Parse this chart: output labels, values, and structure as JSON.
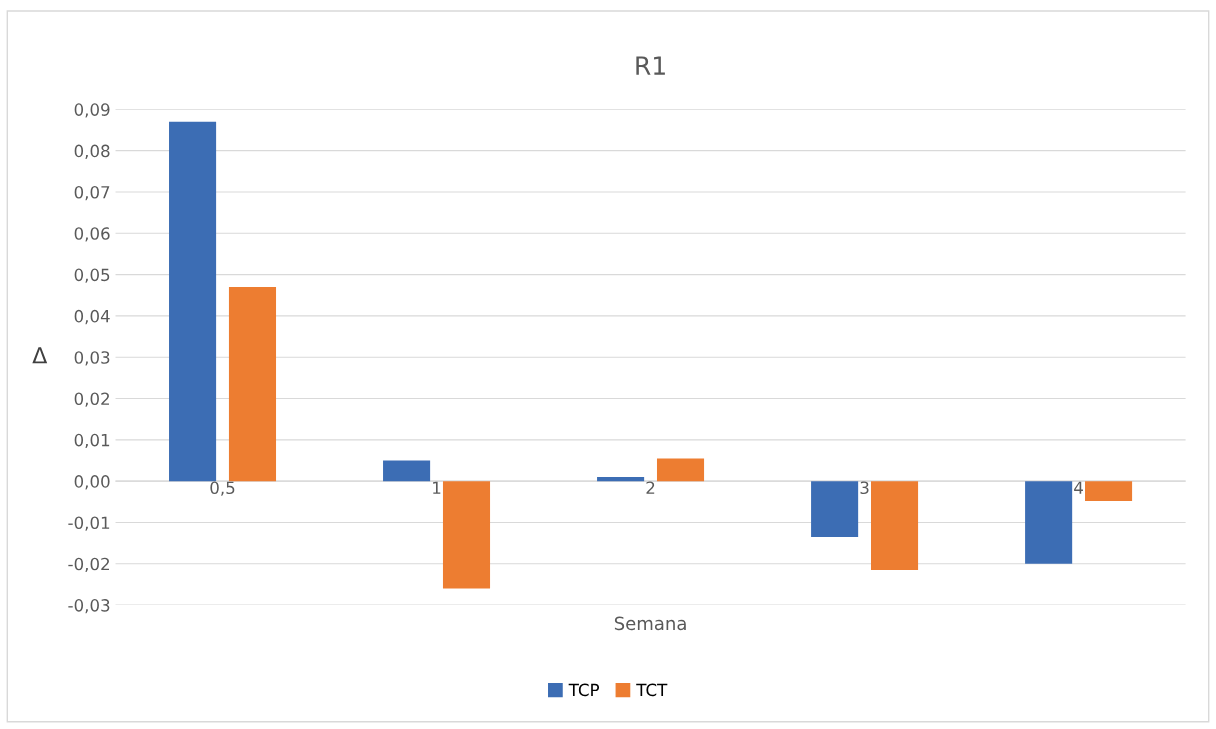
{
  "chart_data": {
    "type": "bar",
    "title": "R1",
    "xlabel": "Semana",
    "ylabel": "Δ",
    "categories": [
      "0,5",
      "1",
      "2",
      "3",
      "4"
    ],
    "series": [
      {
        "name": "TCP",
        "color": "#3c6db4",
        "values": [
          0.087,
          0.005,
          0.001,
          -0.0135,
          -0.02
        ]
      },
      {
        "name": "TCT",
        "color": "#ed7d31",
        "values": [
          0.047,
          -0.026,
          0.0055,
          -0.0215,
          -0.0048
        ]
      }
    ],
    "ylim": [
      -0.03,
      0.09
    ],
    "yticks": [
      {
        "value": -0.03,
        "label": "-0,03"
      },
      {
        "value": -0.02,
        "label": "-0,02"
      },
      {
        "value": -0.01,
        "label": "-0,01"
      },
      {
        "value": 0,
        "label": "0,00"
      },
      {
        "value": 0.01,
        "label": "0,01"
      },
      {
        "value": 0.02,
        "label": "0,02"
      },
      {
        "value": 0.03,
        "label": "0,03"
      },
      {
        "value": 0.04,
        "label": "0,04"
      },
      {
        "value": 0.05,
        "label": "0,05"
      },
      {
        "value": 0.06,
        "label": "0,06"
      },
      {
        "value": 0.07,
        "label": "0,07"
      },
      {
        "value": 0.08,
        "label": "0,08"
      },
      {
        "value": 0.09,
        "label": "0,09"
      }
    ],
    "grid": "y",
    "legend": "bottom"
  }
}
